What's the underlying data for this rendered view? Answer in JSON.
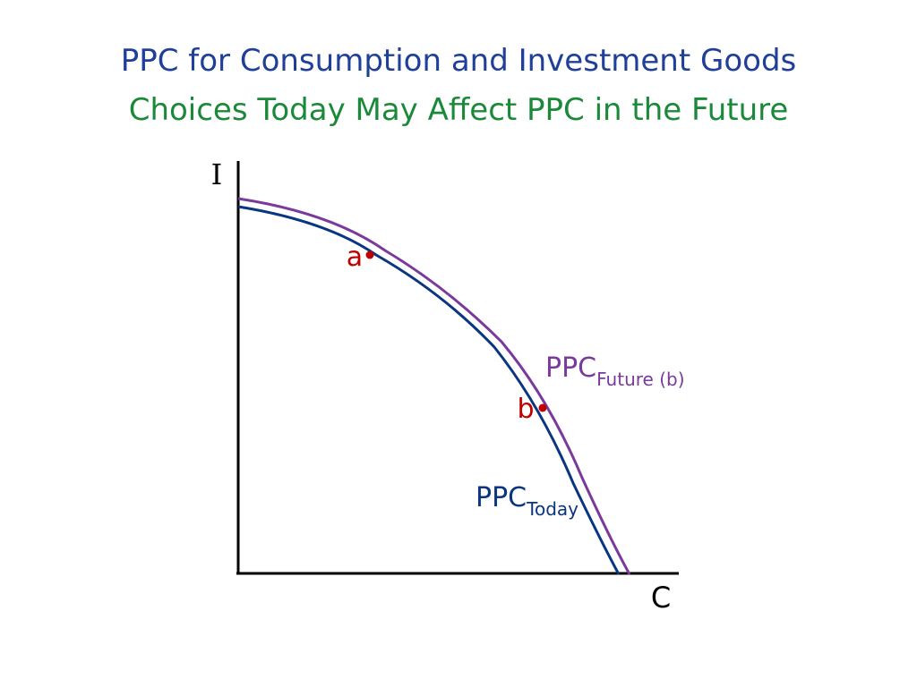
{
  "title": {
    "line1": "PPC for Consumption and Investment Goods",
    "line2": "Choices Today May Affect PPC in the Future"
  },
  "axes": {
    "y_label": "I",
    "x_label": "C"
  },
  "curves": {
    "today": {
      "main": "PPC",
      "sub": "Today"
    },
    "future": {
      "main": "PPC",
      "sub": "Future (b)"
    }
  },
  "points": {
    "a": "a",
    "b": "b"
  },
  "colors": {
    "title_line1": "#1f3f99",
    "title_line2": "#1a8a3a",
    "axis": "#000000",
    "ppc_today": "#0a3580",
    "ppc_future": "#7a3a9c",
    "point": "#c00000"
  }
}
